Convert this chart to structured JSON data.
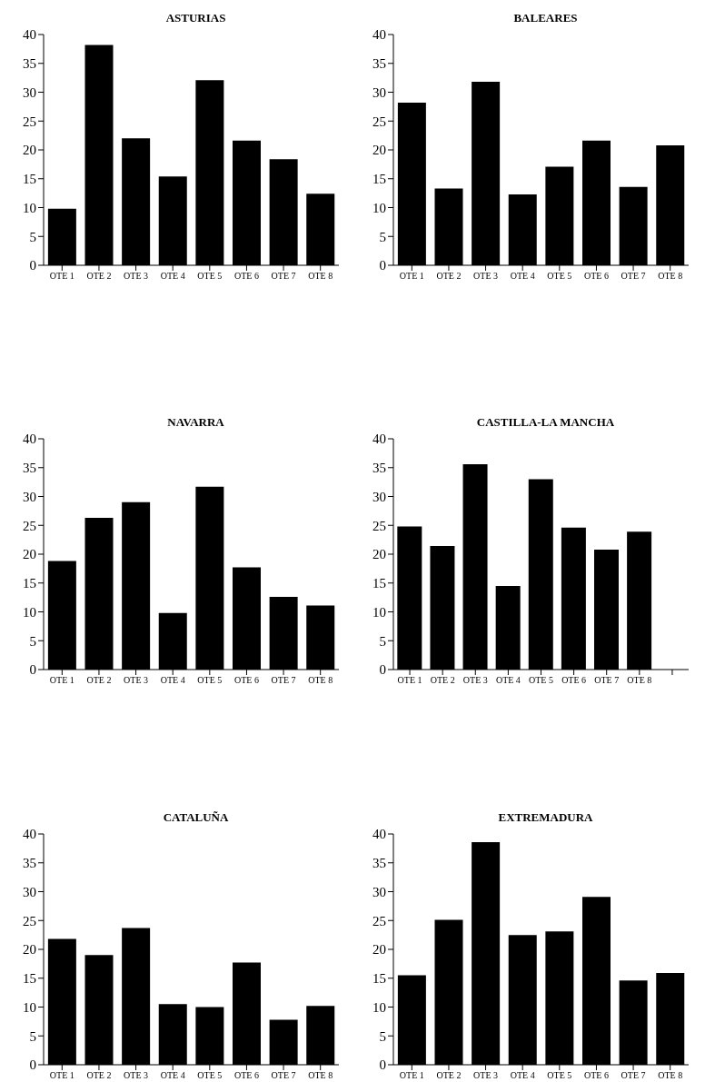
{
  "chart_data": [
    {
      "type": "bar",
      "title": "ASTURIAS",
      "categories": [
        "OTE 1",
        "OTE 2",
        "OTE 3",
        "OTE 4",
        "OTE 5",
        "OTE 6",
        "OTE 7",
        "OTE 8"
      ],
      "values": [
        9.8,
        38.2,
        22,
        15.4,
        32.1,
        21.6,
        18.4,
        12.4
      ],
      "color": "#000000",
      "ylim": [
        0,
        40
      ],
      "yticks": [
        0,
        5,
        10,
        15,
        20,
        25,
        30,
        35,
        40
      ]
    },
    {
      "type": "bar",
      "title": "BALEARES",
      "categories": [
        "OTE 1",
        "OTE 2",
        "OTE 3",
        "OTE 4",
        "OTE 5",
        "OTE 6",
        "OTE 7",
        "OTE 8"
      ],
      "values": [
        28.2,
        13.3,
        31.8,
        12.3,
        17.1,
        21.6,
        13.6,
        20.8
      ],
      "color": "#000000",
      "ylim": [
        0,
        40
      ],
      "yticks": [
        0,
        5,
        10,
        15,
        20,
        25,
        30,
        35,
        40
      ]
    },
    {
      "type": "bar",
      "title": "NAVARRA",
      "categories": [
        "OTE 1",
        "OTE 2",
        "OTE 3",
        "OTE 4",
        "OTE 5",
        "OTE 6",
        "OTE 7",
        "OTE 8"
      ],
      "values": [
        18.8,
        26.3,
        29,
        9.8,
        31.7,
        17.7,
        12.6,
        11.1
      ],
      "color": "#000000",
      "ylim": [
        0,
        40
      ],
      "yticks": [
        0,
        5,
        10,
        15,
        20,
        25,
        30,
        35,
        40
      ]
    },
    {
      "type": "bar",
      "title": "CASTILLA-LA MANCHA",
      "categories": [
        "OTE 1",
        "OTE 2",
        "OTE 3",
        "OTE 4",
        "OTE 5",
        "OTE 6",
        "OTE 7",
        "OTE 8",
        null
      ],
      "values": [
        24.8,
        21.4,
        35.6,
        14.5,
        33,
        24.6,
        20.8,
        23.9,
        null
      ],
      "color": "#000000",
      "ylim": [
        0,
        40
      ],
      "yticks": [
        0,
        5,
        10,
        15,
        20,
        25,
        30,
        35,
        40
      ]
    },
    {
      "type": "bar",
      "title": "CATALUÑA",
      "categories": [
        "OTE 1",
        "OTE 2",
        "OTE 3",
        "OTE 4",
        "OTE 5",
        "OTE 6",
        "OTE 7",
        "OTE 8"
      ],
      "values": [
        21.8,
        19,
        23.7,
        10.5,
        10,
        17.7,
        7.8,
        10.2
      ],
      "color": "#000000",
      "ylim": [
        0,
        40
      ],
      "yticks": [
        0,
        5,
        10,
        15,
        20,
        25,
        30,
        35,
        40
      ]
    },
    {
      "type": "bar",
      "title": "EXTREMADURA",
      "categories": [
        "OTE 1",
        "OTE 2",
        "OTE 3",
        "OTE 4",
        "OTE 5",
        "OTE 6",
        "OTE 7",
        "OTE 8"
      ],
      "values": [
        15.5,
        25.1,
        38.6,
        22.5,
        23.1,
        29.1,
        14.6,
        15.9
      ],
      "color": "#000000",
      "ylim": [
        0,
        40
      ],
      "yticks": [
        0,
        5,
        10,
        15,
        20,
        25,
        30,
        35,
        40
      ]
    }
  ]
}
